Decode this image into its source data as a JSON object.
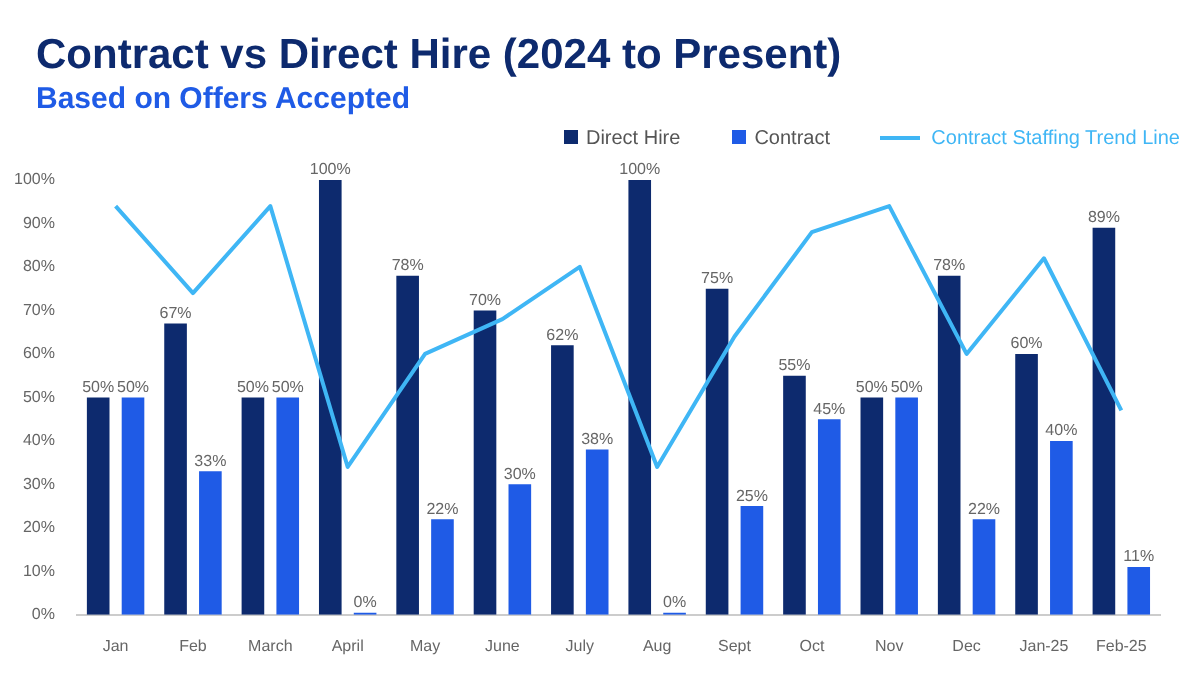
{
  "chart_data": {
    "type": "bar",
    "title": "Contract vs Direct Hire (2024 to Present)",
    "subtitle": "Based on Offers Accepted",
    "categories": [
      "Jan",
      "Feb",
      "March",
      "April",
      "May",
      "June",
      "July",
      "Aug",
      "Sept",
      "Oct",
      "Nov",
      "Dec",
      "Jan-25",
      "Feb-25"
    ],
    "series": [
      {
        "name": "Direct Hire",
        "color": "#0d2a6e",
        "values": [
          50,
          67,
          50,
          100,
          78,
          70,
          62,
          100,
          75,
          55,
          50,
          78,
          60,
          89
        ],
        "value_labels": [
          "50%",
          "67%",
          "50%",
          "100%",
          "78%",
          "70%",
          "62%",
          "100%",
          "75%",
          "55%",
          "50%",
          "78%",
          "60%",
          "89%"
        ]
      },
      {
        "name": "Contract",
        "color": "#1f5be6",
        "values": [
          50,
          33,
          50,
          0,
          22,
          30,
          38,
          0,
          25,
          45,
          50,
          22,
          40,
          11
        ],
        "value_labels": [
          "50%",
          "33%",
          "50%",
          "0%",
          "22%",
          "30%",
          "38%",
          "0%",
          "25%",
          "45%",
          "50%",
          "22%",
          "40%",
          "11%"
        ]
      },
      {
        "name": "Contract Staffing Trend Line",
        "type": "line",
        "color": "#3fb6f5",
        "values": [
          94,
          74,
          94,
          34,
          60,
          68,
          80,
          34,
          64,
          88,
          94,
          60,
          82,
          47
        ]
      }
    ],
    "ylim": [
      0,
      100
    ],
    "yticks": [
      {
        "value": 0,
        "label": "0%"
      },
      {
        "value": 10,
        "label": "10%"
      },
      {
        "value": 20,
        "label": "20%"
      },
      {
        "value": 30,
        "label": "30%"
      },
      {
        "value": 40,
        "label": "40%"
      },
      {
        "value": 50,
        "label": "50%"
      },
      {
        "value": 60,
        "label": "60%"
      },
      {
        "value": 70,
        "label": "70%"
      },
      {
        "value": 80,
        "label": "80%"
      },
      {
        "value": 90,
        "label": "90%"
      },
      {
        "value": 100,
        "label": "100%"
      }
    ],
    "grid": false,
    "legend": "top right",
    "marker": "none"
  }
}
